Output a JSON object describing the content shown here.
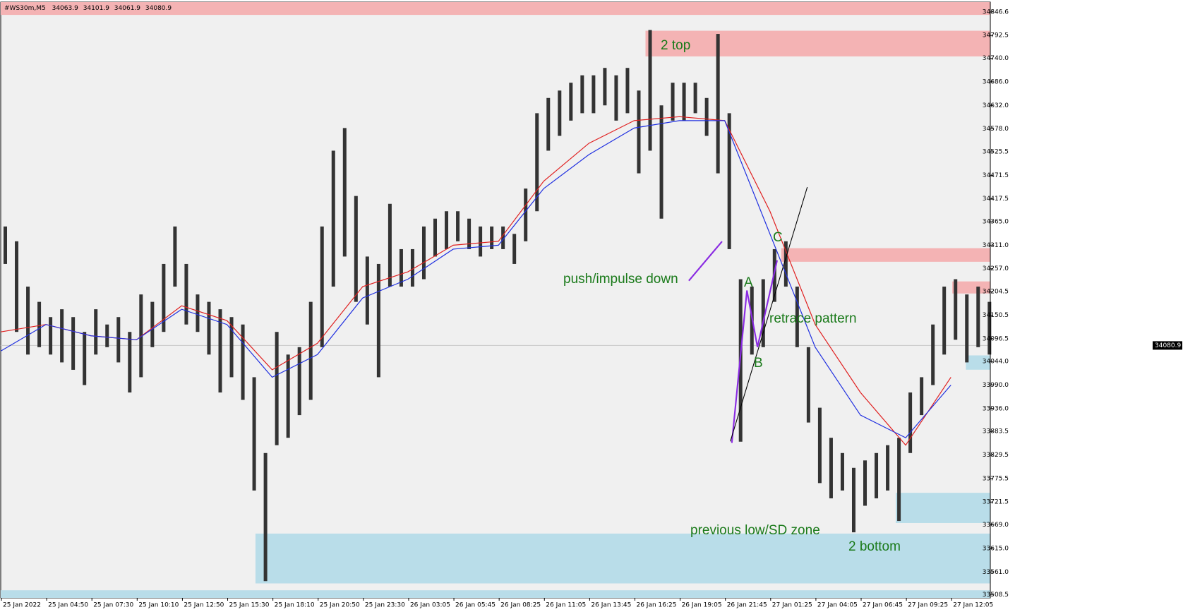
{
  "chart_data": {
    "type": "ohlc",
    "title": "#WS30m,M5",
    "header_values": [
      34063.9,
      34101.9,
      34061.9,
      34080.9
    ],
    "current_price": 34080.9,
    "ylim": [
      33501.5,
      34869
    ],
    "yticks": [
      {
        "value": 34846.6,
        "label": "34846.6"
      },
      {
        "value": 34792.5,
        "label": "34792.5"
      },
      {
        "value": 34740.0,
        "label": "34740.0"
      },
      {
        "value": 34686.0,
        "label": "34686.0"
      },
      {
        "value": 34632.0,
        "label": "34632.0"
      },
      {
        "value": 34578.0,
        "label": "34578.0"
      },
      {
        "value": 34525.5,
        "label": "34525.5"
      },
      {
        "value": 34471.5,
        "label": "34471.5"
      },
      {
        "value": 34417.5,
        "label": "34417.5"
      },
      {
        "value": 34365.0,
        "label": "34365.0"
      },
      {
        "value": 34311.0,
        "label": "34311.0"
      },
      {
        "value": 34257.0,
        "label": "34257.0"
      },
      {
        "value": 34204.5,
        "label": "34204.5"
      },
      {
        "value": 34150.5,
        "label": "34150.5"
      },
      {
        "value": 34096.5,
        "label": "34096.5"
      },
      {
        "value": 34044.0,
        "label": "34044.0"
      },
      {
        "value": 33990.0,
        "label": "33990.0"
      },
      {
        "value": 33936.0,
        "label": "33936.0"
      },
      {
        "value": 33883.5,
        "label": "33883.5"
      },
      {
        "value": 33829.5,
        "label": "33829.5"
      },
      {
        "value": 33775.5,
        "label": "33775.5"
      },
      {
        "value": 33721.5,
        "label": "33721.5"
      },
      {
        "value": 33669.0,
        "label": "33669.0"
      },
      {
        "value": 33615.0,
        "label": "33615.0"
      },
      {
        "value": 33561.0,
        "label": "33561.0"
      },
      {
        "value": 33508.5,
        "label": "33508.5"
      }
    ],
    "xlim": [
      0,
      21.87
    ],
    "xticks": [
      {
        "value": 0,
        "label": "25 Jan 2022"
      },
      {
        "value": 1,
        "label": "25 Jan 04:50"
      },
      {
        "value": 2,
        "label": "25 Jan 07:30"
      },
      {
        "value": 3,
        "label": "25 Jan 10:10"
      },
      {
        "value": 4,
        "label": "25 Jan 12:50"
      },
      {
        "value": 5,
        "label": "25 Jan 15:30"
      },
      {
        "value": 6,
        "label": "25 Jan 18:10"
      },
      {
        "value": 7,
        "label": "25 Jan 20:50"
      },
      {
        "value": 8,
        "label": "25 Jan 23:30"
      },
      {
        "value": 9,
        "label": "26 Jan 03:05"
      },
      {
        "value": 10,
        "label": "26 Jan 05:45"
      },
      {
        "value": 11,
        "label": "26 Jan 08:25"
      },
      {
        "value": 12,
        "label": "26 Jan 11:05"
      },
      {
        "value": 13,
        "label": "26 Jan 13:45"
      },
      {
        "value": 14,
        "label": "26 Jan 16:25"
      },
      {
        "value": 15,
        "label": "26 Jan 19:05"
      },
      {
        "value": 16,
        "label": "26 Jan 21:45"
      },
      {
        "value": 17,
        "label": "27 Jan 01:25"
      },
      {
        "value": 18,
        "label": "27 Jan 04:05"
      },
      {
        "value": 19,
        "label": "27 Jan 06:45"
      },
      {
        "value": 20,
        "label": "27 Jan 09:25"
      },
      {
        "value": 21,
        "label": "27 Jan 12:05"
      }
    ],
    "bars": {
      "color": "#333333",
      "x": [
        0,
        0.25,
        0.5,
        0.75,
        1,
        1.25,
        1.5,
        1.75,
        2,
        2.25,
        2.5,
        2.75,
        3,
        3.25,
        3.5,
        3.75,
        4,
        4.25,
        4.5,
        4.75,
        5,
        5.25,
        5.5,
        5.75,
        6,
        6.25,
        6.5,
        6.75,
        7,
        7.25,
        7.5,
        7.75,
        8,
        8.25,
        8.5,
        8.75,
        9,
        9.25,
        9.5,
        9.75,
        10,
        10.25,
        10.5,
        10.75,
        11,
        11.25,
        11.5,
        11.75,
        12,
        12.25,
        12.5,
        12.75,
        13,
        13.25,
        13.5,
        13.75,
        14,
        14.25,
        14.5,
        14.75,
        15,
        15.25,
        15.5,
        15.75,
        16,
        16.25,
        16.5,
        16.75,
        17,
        17.25,
        17.5,
        17.75,
        18,
        18.25,
        18.5,
        18.75,
        19,
        19.25,
        19.5,
        19.75,
        20,
        20.25,
        20.5,
        20.75,
        21,
        21.25,
        21.5,
        21.75
      ],
      "high": [
        34354,
        34320,
        34216,
        34181,
        34146,
        34164,
        34146,
        34112,
        34164,
        34129,
        34146,
        34112,
        34198,
        34181,
        34268,
        34354,
        34268,
        34198,
        34181,
        34164,
        34146,
        34129,
        34008,
        33834,
        34112,
        34060,
        34077,
        34181,
        34354,
        34528,
        34580,
        34424,
        34285,
        34268,
        34406,
        34302,
        34302,
        34354,
        34372,
        34389,
        34389,
        34372,
        34354,
        34354,
        34354,
        34337,
        34441,
        34614,
        34649,
        34666,
        34684,
        34701,
        34701,
        34718,
        34701,
        34718,
        34666,
        34805,
        34632,
        34684,
        34684,
        34684,
        34649,
        34796,
        34614,
        34233,
        34216,
        34233,
        34302,
        34320,
        34216,
        34077,
        33938,
        33869,
        33834,
        33800,
        33817,
        33834,
        33852,
        33869,
        33973,
        34008,
        34129,
        34216,
        34233,
        34198,
        34216,
        34181
      ],
      "low": [
        34268,
        34112,
        34060,
        34077,
        34060,
        34042,
        34025,
        33990,
        34060,
        34077,
        34042,
        33973,
        34008,
        34077,
        34112,
        34216,
        34129,
        34112,
        34060,
        33973,
        34008,
        33956,
        33748,
        33540,
        33852,
        33869,
        33921,
        33956,
        34077,
        34216,
        34285,
        34181,
        34129,
        34008,
        34216,
        34216,
        34216,
        34233,
        34285,
        34302,
        34320,
        34302,
        34285,
        34302,
        34302,
        34268,
        34320,
        34389,
        34528,
        34562,
        34597,
        34614,
        34614,
        34632,
        34597,
        34614,
        34476,
        34528,
        34372,
        34597,
        34597,
        34614,
        34562,
        34476,
        34302,
        33860,
        34060,
        34077,
        34181,
        34216,
        34077,
        33904,
        33765,
        33730,
        33748,
        33652,
        33713,
        33730,
        33748,
        33678,
        33834,
        33921,
        33990,
        34060,
        34094,
        34042,
        34077,
        34060
      ]
    },
    "ma_lines": [
      {
        "color": "#e02020",
        "x": [
          0,
          1,
          2,
          3,
          4,
          5,
          6,
          7,
          8,
          9,
          10,
          11,
          12,
          13,
          14,
          15,
          16,
          17,
          18,
          19,
          20,
          21
        ],
        "values": [
          34112,
          34129,
          34103,
          34094,
          34172,
          34138,
          34025,
          34086,
          34216,
          34250,
          34311,
          34320,
          34458,
          34545,
          34597,
          34606,
          34597,
          34389,
          34129,
          33973,
          33852,
          34008
        ]
      },
      {
        "color": "#2030e0",
        "x": [
          0,
          1,
          2,
          3,
          4,
          5,
          6,
          7,
          8,
          9,
          10,
          11,
          12,
          13,
          14,
          15,
          16,
          17,
          18,
          19,
          20,
          21
        ],
        "values": [
          34068,
          34129,
          34103,
          34094,
          34164,
          34129,
          34008,
          34060,
          34190,
          34233,
          34302,
          34311,
          34441,
          34519,
          34580,
          34597,
          34597,
          34337,
          34077,
          33921,
          33869,
          33990
        ]
      }
    ],
    "zones": [
      {
        "color": "#f4b3b4",
        "x_from": 0,
        "x_to": 21.87,
        "y_from": 34839.7,
        "y_to": 34869
      },
      {
        "color": "#f4b3b4",
        "x_from": 14.25,
        "x_to": 21.87,
        "y_from": 34744.4,
        "y_to": 34803.3
      },
      {
        "color": "#f4b3b4",
        "x_from": 17.25,
        "x_to": 21.87,
        "y_from": 34273.0,
        "y_to": 34304.2
      },
      {
        "color": "#f4b3b4",
        "x_from": 21.03,
        "x_to": 21.87,
        "y_from": 34200.2,
        "y_to": 34227.9
      },
      {
        "color": "#b9dde9",
        "x_from": 21.33,
        "x_to": 21.87,
        "y_from": 34025.2,
        "y_to": 34058.1
      },
      {
        "color": "#b9dde9",
        "x_from": 19.78,
        "x_to": 21.87,
        "y_from": 33673.3,
        "y_to": 33742.7
      },
      {
        "color": "#b9dde9",
        "x_from": 5.63,
        "x_to": 21.87,
        "y_from": 33534.7,
        "y_to": 33649.1
      },
      {
        "color": "#b9dde9",
        "x_from": 0,
        "x_to": 21.87,
        "y_from": 33501.5,
        "y_to": 33519
      }
    ],
    "annotations": [
      {
        "text": "2 top"
      },
      {
        "text": "push/impulse down"
      },
      {
        "text": "retrace pattern"
      },
      {
        "text": "A"
      },
      {
        "text": "B"
      },
      {
        "text": "C"
      },
      {
        "text": "previous low/SD zone"
      },
      {
        "text": "2 bottom"
      }
    ]
  }
}
